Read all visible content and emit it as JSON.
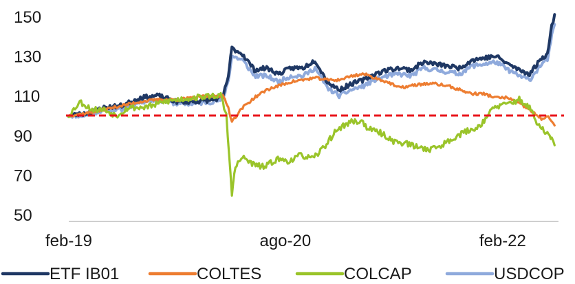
{
  "chart_data": {
    "type": "line",
    "title": "",
    "xlabel": "",
    "ylabel": "",
    "ylim": [
      50,
      150
    ],
    "y_ticks": [
      50,
      70,
      90,
      110,
      130,
      150
    ],
    "x_range": [
      "2019-02-01",
      "2022-06-15"
    ],
    "x_ticks": [
      {
        "label": "feb-19",
        "date": "2019-02-01"
      },
      {
        "label": "ago-20",
        "date": "2020-08-01"
      },
      {
        "label": "feb-22",
        "date": "2022-02-01"
      }
    ],
    "grid": false,
    "legend_position": "bottom",
    "reference_line": {
      "y": 100,
      "color": "#e8141b",
      "style": "dashed"
    },
    "series": [
      {
        "name": "USDCOP",
        "color": "#8faadc",
        "points": [
          [
            "2019-02-01",
            100
          ],
          [
            "2019-03-15",
            100
          ],
          [
            "2019-05-01",
            103
          ],
          [
            "2019-06-15",
            103
          ],
          [
            "2019-08-01",
            107
          ],
          [
            "2019-09-15",
            108
          ],
          [
            "2019-11-01",
            106
          ],
          [
            "2019-12-15",
            106
          ],
          [
            "2020-01-31",
            107
          ],
          [
            "2020-02-25",
            108
          ],
          [
            "2020-03-10",
            118
          ],
          [
            "2020-03-19",
            130
          ],
          [
            "2020-04-15",
            128
          ],
          [
            "2020-05-15",
            120
          ],
          [
            "2020-06-15",
            120
          ],
          [
            "2020-07-15",
            117
          ],
          [
            "2020-08-15",
            120
          ],
          [
            "2020-09-15",
            120
          ],
          [
            "2020-10-15",
            124
          ],
          [
            "2020-11-15",
            114
          ],
          [
            "2020-12-15",
            110
          ],
          [
            "2021-01-15",
            113
          ],
          [
            "2021-02-15",
            115
          ],
          [
            "2021-03-15",
            118
          ],
          [
            "2021-04-15",
            120
          ],
          [
            "2021-05-15",
            121
          ],
          [
            "2021-06-15",
            120
          ],
          [
            "2021-07-15",
            124
          ],
          [
            "2021-08-15",
            123
          ],
          [
            "2021-09-15",
            122
          ],
          [
            "2021-10-15",
            121
          ],
          [
            "2021-11-15",
            125
          ],
          [
            "2021-12-15",
            126
          ],
          [
            "2022-01-15",
            127
          ],
          [
            "2022-02-15",
            123
          ],
          [
            "2022-03-15",
            120
          ],
          [
            "2022-04-10",
            118
          ],
          [
            "2022-05-10",
            126
          ],
          [
            "2022-05-25",
            128
          ],
          [
            "2022-06-05",
            140
          ],
          [
            "2022-06-12",
            146
          ]
        ]
      },
      {
        "name": "ETF IB01",
        "color": "#1f3864",
        "points": [
          [
            "2019-02-01",
            100
          ],
          [
            "2019-03-15",
            101
          ],
          [
            "2019-05-01",
            104
          ],
          [
            "2019-06-15",
            105
          ],
          [
            "2019-08-01",
            109
          ],
          [
            "2019-09-15",
            110
          ],
          [
            "2019-11-01",
            107
          ],
          [
            "2019-12-15",
            107
          ],
          [
            "2020-01-31",
            108
          ],
          [
            "2020-02-25",
            109
          ],
          [
            "2020-03-10",
            120
          ],
          [
            "2020-03-19",
            134
          ],
          [
            "2020-04-15",
            131
          ],
          [
            "2020-05-15",
            123
          ],
          [
            "2020-06-15",
            124
          ],
          [
            "2020-07-15",
            121
          ],
          [
            "2020-08-15",
            124
          ],
          [
            "2020-09-15",
            124
          ],
          [
            "2020-10-15",
            128
          ],
          [
            "2020-11-15",
            117
          ],
          [
            "2020-12-15",
            113
          ],
          [
            "2021-01-15",
            116
          ],
          [
            "2021-02-15",
            118
          ],
          [
            "2021-03-15",
            121
          ],
          [
            "2021-04-15",
            123
          ],
          [
            "2021-05-15",
            124
          ],
          [
            "2021-06-15",
            123
          ],
          [
            "2021-07-15",
            127
          ],
          [
            "2021-08-15",
            126
          ],
          [
            "2021-09-15",
            125
          ],
          [
            "2021-10-15",
            124
          ],
          [
            "2021-11-15",
            128
          ],
          [
            "2021-12-15",
            129
          ],
          [
            "2022-01-15",
            130
          ],
          [
            "2022-02-15",
            126
          ],
          [
            "2022-03-15",
            123
          ],
          [
            "2022-04-10",
            121
          ],
          [
            "2022-05-10",
            129
          ],
          [
            "2022-05-25",
            131
          ],
          [
            "2022-06-05",
            145
          ],
          [
            "2022-06-12",
            151
          ]
        ]
      },
      {
        "name": "COLTES",
        "color": "#ed7d31",
        "points": [
          [
            "2019-02-01",
            100
          ],
          [
            "2019-03-15",
            101
          ],
          [
            "2019-05-01",
            103
          ],
          [
            "2019-06-15",
            105
          ],
          [
            "2019-08-01",
            107
          ],
          [
            "2019-09-15",
            108
          ],
          [
            "2019-11-01",
            108
          ],
          [
            "2019-12-15",
            109
          ],
          [
            "2020-01-31",
            110
          ],
          [
            "2020-02-25",
            110
          ],
          [
            "2020-03-10",
            104
          ],
          [
            "2020-03-19",
            97
          ],
          [
            "2020-04-15",
            104
          ],
          [
            "2020-05-15",
            109
          ],
          [
            "2020-06-15",
            113
          ],
          [
            "2020-07-15",
            115
          ],
          [
            "2020-08-15",
            117
          ],
          [
            "2020-09-15",
            118
          ],
          [
            "2020-10-15",
            119
          ],
          [
            "2020-11-15",
            118
          ],
          [
            "2020-12-15",
            118
          ],
          [
            "2021-01-15",
            120
          ],
          [
            "2021-02-15",
            121
          ],
          [
            "2021-03-15",
            119
          ],
          [
            "2021-04-15",
            117
          ],
          [
            "2021-05-15",
            114
          ],
          [
            "2021-06-15",
            115
          ],
          [
            "2021-07-15",
            116
          ],
          [
            "2021-08-15",
            116
          ],
          [
            "2021-09-15",
            115
          ],
          [
            "2021-10-15",
            113
          ],
          [
            "2021-11-15",
            111
          ],
          [
            "2021-12-15",
            111
          ],
          [
            "2022-01-15",
            109
          ],
          [
            "2022-02-15",
            109
          ],
          [
            "2022-03-15",
            106
          ],
          [
            "2022-04-10",
            103
          ],
          [
            "2022-05-10",
            98
          ],
          [
            "2022-05-25",
            100
          ],
          [
            "2022-06-05",
            97
          ],
          [
            "2022-06-12",
            95
          ]
        ]
      },
      {
        "name": "COLCAP",
        "color": "#9ac42a",
        "points": [
          [
            "2019-02-01",
            100
          ],
          [
            "2019-03-01",
            107
          ],
          [
            "2019-04-01",
            103
          ],
          [
            "2019-05-01",
            103
          ],
          [
            "2019-06-01",
            100
          ],
          [
            "2019-07-01",
            104
          ],
          [
            "2019-08-01",
            104
          ],
          [
            "2019-09-01",
            105
          ],
          [
            "2019-10-01",
            107
          ],
          [
            "2019-11-01",
            108
          ],
          [
            "2019-12-15",
            109
          ],
          [
            "2020-01-31",
            110
          ],
          [
            "2020-02-20",
            110
          ],
          [
            "2020-03-05",
            100
          ],
          [
            "2020-03-12",
            80
          ],
          [
            "2020-03-19",
            61
          ],
          [
            "2020-03-28",
            74
          ],
          [
            "2020-04-15",
            79
          ],
          [
            "2020-05-15",
            75
          ],
          [
            "2020-06-10",
            74
          ],
          [
            "2020-07-10",
            78
          ],
          [
            "2020-08-10",
            77
          ],
          [
            "2020-09-10",
            80
          ],
          [
            "2020-10-10",
            78
          ],
          [
            "2020-11-10",
            85
          ],
          [
            "2020-12-10",
            93
          ],
          [
            "2021-01-15",
            97
          ],
          [
            "2021-02-10",
            97
          ],
          [
            "2021-03-01",
            93
          ],
          [
            "2021-04-01",
            91
          ],
          [
            "2021-05-01",
            87
          ],
          [
            "2021-06-01",
            86
          ],
          [
            "2021-07-01",
            84
          ],
          [
            "2021-08-01",
            83
          ],
          [
            "2021-09-01",
            85
          ],
          [
            "2021-10-01",
            89
          ],
          [
            "2021-11-01",
            92
          ],
          [
            "2021-12-01",
            94
          ],
          [
            "2022-01-10",
            104
          ],
          [
            "2022-02-15",
            106
          ],
          [
            "2022-03-15",
            108
          ],
          [
            "2022-04-10",
            104
          ],
          [
            "2022-05-01",
            95
          ],
          [
            "2022-05-25",
            91
          ],
          [
            "2022-06-05",
            88
          ],
          [
            "2022-06-12",
            85
          ]
        ]
      }
    ]
  },
  "legend": [
    {
      "label": "ETF IB01",
      "color": "#1f3864"
    },
    {
      "label": "COLTES",
      "color": "#ed7d31"
    },
    {
      "label": "COLCAP",
      "color": "#9ac42a"
    },
    {
      "label": "USDCOP",
      "color": "#8faadc"
    }
  ]
}
